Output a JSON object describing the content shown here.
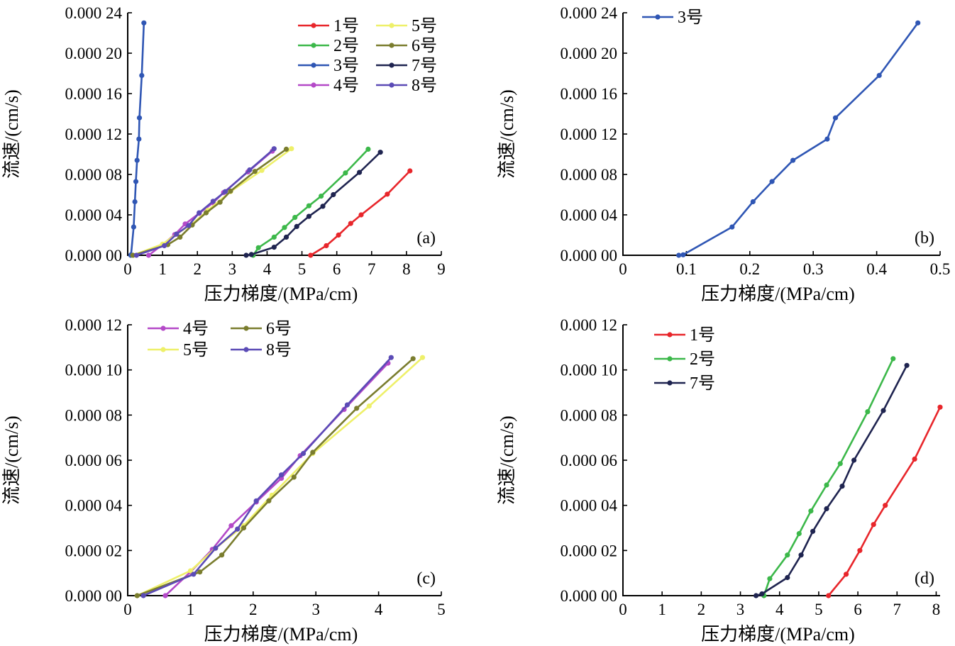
{
  "colors": {
    "1号": "#e8262b",
    "2号": "#3cb84a",
    "3号": "#2f56b4",
    "4号": "#b449c8",
    "5号": "#eef069",
    "6号": "#7a7d2e",
    "7号": "#1f2450",
    "8号": "#5b4bb6"
  },
  "chart_data": [
    {
      "type": "line",
      "panel_label": "(a)",
      "xlabel": "压力梯度/(MPa/cm)",
      "ylabel": "流速/(cm/s)",
      "xlim": [
        0,
        9
      ],
      "ylim": [
        0,
        0.00024
      ],
      "x_ticks": [
        0,
        1,
        2,
        3,
        4,
        5,
        6,
        7,
        8,
        9
      ],
      "x_tick_labels": [
        "0",
        "1",
        "2",
        "3",
        "4",
        "5",
        "6",
        "7",
        "8",
        "9"
      ],
      "y_ticks": [
        0,
        4e-05,
        8e-05,
        0.00012,
        0.00016,
        0.0002,
        0.00024
      ],
      "y_tick_labels": [
        "0.000 00",
        "0.000 04",
        "0.000 08",
        "0.000 12",
        "0.000 16",
        "0.000 20",
        "0.000 24"
      ],
      "legend_position": "top-right",
      "legend_columns": 2,
      "series": [
        {
          "name": "1号",
          "x": [
            5.25,
            5.7,
            6.05,
            6.4,
            6.7,
            7.45,
            8.1
          ],
          "y": [
            0,
            9.5e-06,
            2e-05,
            3.15e-05,
            4e-05,
            6.05e-05,
            8.35e-05
          ]
        },
        {
          "name": "2号",
          "x": [
            3.6,
            3.75,
            4.2,
            4.5,
            4.8,
            5.2,
            5.55,
            6.25,
            6.9
          ],
          "y": [
            0,
            7.5e-06,
            1.8e-05,
            2.75e-05,
            3.75e-05,
            4.9e-05,
            5.85e-05,
            8.15e-05,
            0.000105
          ]
        },
        {
          "name": "3号",
          "x": [
            0.088,
            0.095,
            0.172,
            0.205,
            0.235,
            0.268,
            0.322,
            0.335,
            0.404,
            0.465
          ],
          "y": [
            0,
            5e-07,
            2.8e-05,
            5.3e-05,
            7.3e-05,
            9.4e-05,
            0.000115,
            0.000136,
            0.000178,
            0.00023
          ]
        },
        {
          "name": "4号",
          "x": [
            0.6,
            1.0,
            1.35,
            1.65,
            2.05,
            2.45,
            2.75,
            3.45,
            4.15
          ],
          "y": [
            0,
            1.05e-05,
            2.05e-05,
            3.1e-05,
            4.15e-05,
            5.2e-05,
            6.2e-05,
            8.25e-05,
            0.000103
          ]
        },
        {
          "name": "5号",
          "x": [
            0.15,
            1.0,
            1.4,
            1.85,
            2.3,
            2.95,
            3.85,
            4.7
          ],
          "y": [
            0,
            1.1e-05,
            2.1e-05,
            3.1e-05,
            4.45e-05,
            6.3e-05,
            8.4e-05,
            0.0001055
          ]
        },
        {
          "name": "6号",
          "x": [
            0.15,
            1.15,
            1.5,
            1.85,
            2.25,
            2.65,
            2.95,
            3.65,
            4.55
          ],
          "y": [
            0,
            1.05e-05,
            1.8e-05,
            3e-05,
            4.2e-05,
            5.25e-05,
            6.35e-05,
            8.3e-05,
            0.000105
          ]
        },
        {
          "name": "7号",
          "x": [
            3.4,
            3.55,
            4.2,
            4.55,
            4.85,
            5.2,
            5.6,
            5.9,
            6.65,
            7.25
          ],
          "y": [
            0,
            8e-07,
            8e-06,
            1.8e-05,
            2.85e-05,
            3.85e-05,
            4.85e-05,
            6e-05,
            8.2e-05,
            0.000102
          ]
        },
        {
          "name": "8号",
          "x": [
            0.25,
            1.05,
            1.4,
            1.75,
            2.05,
            2.45,
            2.8,
            3.5,
            4.2
          ],
          "y": [
            0,
            9.5e-06,
            2.1e-05,
            2.95e-05,
            4.2e-05,
            5.35e-05,
            6.3e-05,
            8.45e-05,
            0.0001055
          ]
        }
      ]
    },
    {
      "type": "line",
      "panel_label": "(b)",
      "xlabel": "压力梯度/(MPa/cm)",
      "ylabel": "流速/(cm/s)",
      "xlim": [
        0,
        0.5
      ],
      "ylim": [
        0,
        0.00024
      ],
      "x_ticks": [
        0,
        0.1,
        0.2,
        0.3,
        0.4,
        0.5
      ],
      "x_tick_labels": [
        "0",
        "0.1",
        "0.2",
        "0.3",
        "0.4",
        "0.5"
      ],
      "y_ticks": [
        0,
        4e-05,
        8e-05,
        0.00012,
        0.00016,
        0.0002,
        0.00024
      ],
      "y_tick_labels": [
        "0.000 00",
        "0.000 04",
        "0.000 08",
        "0.000 12",
        "0.000 16",
        "0.000 20",
        "0.000 24"
      ],
      "legend_position": "top-left",
      "legend_columns": 1,
      "series": [
        {
          "name": "3号",
          "x": [
            0.088,
            0.095,
            0.172,
            0.205,
            0.235,
            0.268,
            0.322,
            0.335,
            0.404,
            0.465
          ],
          "y": [
            0,
            5e-07,
            2.8e-05,
            5.3e-05,
            7.3e-05,
            9.4e-05,
            0.000115,
            0.000136,
            0.000178,
            0.00023
          ]
        }
      ]
    },
    {
      "type": "line",
      "panel_label": "(c)",
      "xlabel": "压力梯度/(MPa/cm)",
      "ylabel": "流速/(cm/s)",
      "xlim": [
        0,
        5
      ],
      "ylim": [
        0,
        0.00012
      ],
      "x_ticks": [
        0,
        1,
        2,
        3,
        4,
        5
      ],
      "x_tick_labels": [
        "0",
        "1",
        "2",
        "3",
        "4",
        "5"
      ],
      "y_ticks": [
        0,
        2e-05,
        4e-05,
        6e-05,
        8e-05,
        0.0001,
        0.00012
      ],
      "y_tick_labels": [
        "0.000 00",
        "0.000 02",
        "0.000 04",
        "0.000 06",
        "0.000 08",
        "0.000 10",
        "0.000 12"
      ],
      "legend_position": "top-left",
      "legend_columns": 2,
      "series": [
        {
          "name": "4号",
          "x": [
            0.6,
            1.0,
            1.35,
            1.65,
            2.05,
            2.45,
            2.75,
            3.45,
            4.15
          ],
          "y": [
            0,
            1.05e-05,
            2.05e-05,
            3.1e-05,
            4.15e-05,
            5.2e-05,
            6.2e-05,
            8.25e-05,
            0.000103
          ]
        },
        {
          "name": "5号",
          "x": [
            0.15,
            1.0,
            1.4,
            1.85,
            2.3,
            2.95,
            3.85,
            4.7
          ],
          "y": [
            0,
            1.1e-05,
            2.1e-05,
            3.1e-05,
            4.45e-05,
            6.3e-05,
            8.4e-05,
            0.0001055
          ]
        },
        {
          "name": "6号",
          "x": [
            0.15,
            1.15,
            1.5,
            1.85,
            2.25,
            2.65,
            2.95,
            3.65,
            4.55
          ],
          "y": [
            0,
            1.05e-05,
            1.8e-05,
            3e-05,
            4.2e-05,
            5.25e-05,
            6.35e-05,
            8.3e-05,
            0.000105
          ]
        },
        {
          "name": "8号",
          "x": [
            0.25,
            1.05,
            1.4,
            1.75,
            2.05,
            2.45,
            2.8,
            3.5,
            4.2
          ],
          "y": [
            0,
            9.5e-06,
            2.1e-05,
            2.95e-05,
            4.2e-05,
            5.35e-05,
            6.3e-05,
            8.45e-05,
            0.0001055
          ]
        }
      ]
    },
    {
      "type": "line",
      "panel_label": "(d)",
      "xlabel": "压力梯度/(MPa/cm)",
      "ylabel": "流速/(cm/s)",
      "xlim": [
        0,
        8.1
      ],
      "ylim": [
        0,
        0.00012
      ],
      "x_ticks": [
        0,
        1,
        2,
        3,
        4,
        5,
        6,
        7,
        8
      ],
      "x_tick_labels": [
        "0",
        "1",
        "2",
        "3",
        "4",
        "5",
        "6",
        "7",
        "8"
      ],
      "y_ticks": [
        0,
        2e-05,
        4e-05,
        6e-05,
        8e-05,
        0.0001,
        0.00012
      ],
      "y_tick_labels": [
        "0.000 00",
        "0.000 02",
        "0.000 04",
        "0.000 06",
        "0.000 08",
        "0.000 10",
        "0.000 12"
      ],
      "legend_position": "top-left",
      "legend_columns": 1,
      "series": [
        {
          "name": "1号",
          "x": [
            5.25,
            5.7,
            6.05,
            6.4,
            6.7,
            7.45,
            8.1
          ],
          "y": [
            0,
            9.5e-06,
            2e-05,
            3.15e-05,
            4e-05,
            6.05e-05,
            8.35e-05
          ]
        },
        {
          "name": "2号",
          "x": [
            3.6,
            3.75,
            4.2,
            4.5,
            4.8,
            5.2,
            5.55,
            6.25,
            6.9
          ],
          "y": [
            0,
            7.5e-06,
            1.8e-05,
            2.75e-05,
            3.75e-05,
            4.9e-05,
            5.85e-05,
            8.15e-05,
            0.000105
          ]
        },
        {
          "name": "7号",
          "x": [
            3.4,
            3.55,
            4.2,
            4.55,
            4.85,
            5.2,
            5.6,
            5.9,
            6.65,
            7.25
          ],
          "y": [
            0,
            8e-07,
            8e-06,
            1.8e-05,
            2.85e-05,
            3.85e-05,
            4.85e-05,
            6e-05,
            8.2e-05,
            0.000102
          ]
        }
      ]
    }
  ]
}
